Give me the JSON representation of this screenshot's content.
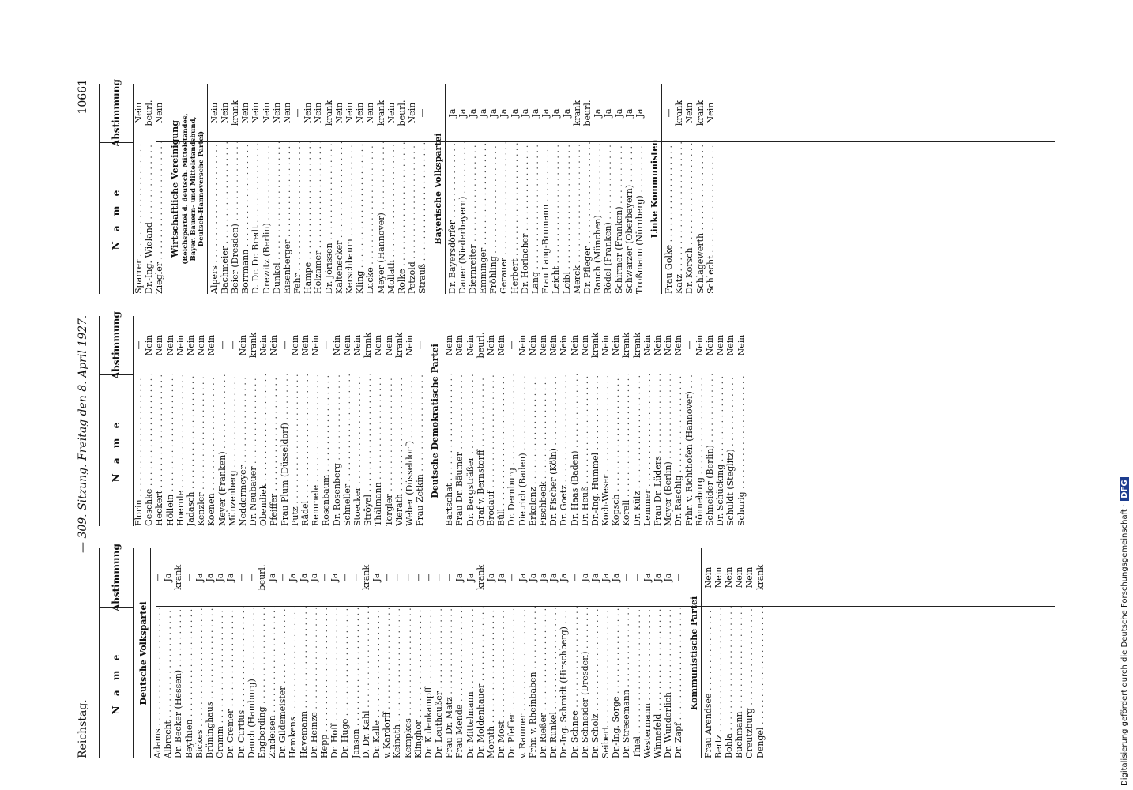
{
  "header": {
    "left": "Reichstag.",
    "center": "— 309. Sitzung. Freitag den 8. April 1927.",
    "page_number": "10661"
  },
  "column_header": {
    "name": "N a m e",
    "vote": "Abstimmung"
  },
  "sidebar": {
    "text": "Digitalisierung gefördert durch die Deutsche Forschungsgemeinschaft ·",
    "logo": "DFG"
  },
  "columns": [
    {
      "sections": [
        {
          "title": "Deutsche Volkspartei",
          "rows": [
            {
              "name": "Adams",
              "vote": "—"
            },
            {
              "name": "Albrecht",
              "vote": "Ja"
            },
            {
              "name": "Dr. Becker (Hessen)",
              "vote": "krank"
            },
            {
              "name": "Beythien",
              "vote": "—"
            },
            {
              "name": "Bickes",
              "vote": "Ja"
            },
            {
              "name": "Brüninghaus",
              "vote": "Ja"
            },
            {
              "name": "Cramm",
              "vote": "Ja"
            },
            {
              "name": "Dr. Cremer",
              "vote": "Ja"
            },
            {
              "name": "Dr. Curtius",
              "vote": "—"
            },
            {
              "name": "Dauch (Hamburg)",
              "vote": "—"
            },
            {
              "name": "Engberding",
              "vote": "beurl."
            },
            {
              "name": "Zindeisen",
              "vote": "Ja"
            },
            {
              "name": "Dr. Gildemeister",
              "vote": "—"
            },
            {
              "name": "Hamkens",
              "vote": "Ja"
            },
            {
              "name": "Havemann",
              "vote": "Ja"
            },
            {
              "name": "Dr. Heinze",
              "vote": "Ja"
            },
            {
              "name": "Hepp",
              "vote": "—"
            },
            {
              "name": "Dr. Hoff",
              "vote": "Ja"
            },
            {
              "name": "Dr. Hugo",
              "vote": "—"
            },
            {
              "name": "Janson",
              "vote": "—"
            },
            {
              "name": "D. Dr. Kahl",
              "vote": "krank"
            },
            {
              "name": "Dr. Kalle",
              "vote": "Ja"
            },
            {
              "name": "v. Kardorff",
              "vote": "—"
            },
            {
              "name": "Keinath",
              "vote": "—"
            },
            {
              "name": "Kempkes",
              "vote": "—"
            },
            {
              "name": "Klinghor",
              "vote": "—"
            },
            {
              "name": "Dr. Kulenkampff",
              "vote": "—"
            },
            {
              "name": "Dr. Leutheußer",
              "vote": "—"
            },
            {
              "name": "Frau Dr. Matz",
              "vote": "—"
            },
            {
              "name": "Frau Mende",
              "vote": "Ja"
            },
            {
              "name": "Dr. Mittelmann",
              "vote": "Ja"
            },
            {
              "name": "Dr. Moldenhauer",
              "vote": "krank"
            },
            {
              "name": "Morath",
              "vote": "Ja"
            },
            {
              "name": "Dr. Most",
              "vote": "Ja"
            },
            {
              "name": "Dr. Pfeffer",
              "vote": "—"
            },
            {
              "name": "v. Raumer",
              "vote": "Ja"
            },
            {
              "name": "Frhr. v. Rheinbaben",
              "vote": "Ja"
            },
            {
              "name": "Dr. Rießer",
              "vote": "Ja"
            },
            {
              "name": "Dr. Runkel",
              "vote": "Ja"
            },
            {
              "name": "Dr.-Ing. Schmidt (Hirschberg)",
              "vote": "Ja"
            },
            {
              "name": "Dr. Schnee",
              "vote": "—"
            },
            {
              "name": "Dr. Schneider (Dresden)",
              "vote": "Ja"
            },
            {
              "name": "Dr. Scholz",
              "vote": "Ja"
            },
            {
              "name": "Seibert",
              "vote": "Ja"
            },
            {
              "name": "Dr.-Ing. Sorge",
              "vote": "Ja"
            },
            {
              "name": "Dr. Stresemann",
              "vote": "—"
            },
            {
              "name": "Thiel",
              "vote": "—"
            },
            {
              "name": "Westermann",
              "vote": "Ja"
            },
            {
              "name": "Winnefeld",
              "vote": "Ja"
            },
            {
              "name": "Dr. Wunderlich",
              "vote": "Ja"
            },
            {
              "name": "Dr. Zapf",
              "vote": "—"
            }
          ]
        },
        {
          "title": "Kommunistische Partei",
          "rows": [
            {
              "name": "Frau Arendsee",
              "vote": "Nein"
            },
            {
              "name": "Bertz",
              "vote": "Nein"
            },
            {
              "name": "Bohla",
              "vote": "Nein"
            },
            {
              "name": "Buchmann",
              "vote": "Nein"
            },
            {
              "name": "Creutzburg",
              "vote": "Nein"
            },
            {
              "name": "Dengel",
              "vote": "krank"
            }
          ]
        }
      ]
    },
    {
      "sections": [
        {
          "title": "",
          "rows": [
            {
              "name": "Florin",
              "vote": "—"
            },
            {
              "name": "Geschke",
              "vote": "Nein"
            },
            {
              "name": "Heckert",
              "vote": "Nein"
            },
            {
              "name": "Höllein",
              "vote": "Nein"
            },
            {
              "name": "Hoernle",
              "vote": "Nein"
            },
            {
              "name": "Jadasch",
              "vote": "Nein"
            },
            {
              "name": "Kenzler",
              "vote": "Nein"
            },
            {
              "name": "Koenen",
              "vote": "Nein"
            },
            {
              "name": "Meyer (Franken)",
              "vote": "—"
            },
            {
              "name": "Münzenberg",
              "vote": "—"
            },
            {
              "name": "Neddermeyer",
              "vote": "Nein"
            },
            {
              "name": "Dr. Neubauer",
              "vote": "krank"
            },
            {
              "name": "Obendiek",
              "vote": "Nein"
            },
            {
              "name": "Pfeiffer",
              "vote": "Nein"
            },
            {
              "name": "Frau Plum (Düsseldorf)",
              "vote": "—"
            },
            {
              "name": "Putz",
              "vote": "Nein"
            },
            {
              "name": "Rädel",
              "vote": "Nein"
            },
            {
              "name": "Remmele",
              "vote": "Nein"
            },
            {
              "name": "Rosenbaum",
              "vote": "—"
            },
            {
              "name": "Dr. Rosenberg",
              "vote": "Nein"
            },
            {
              "name": "Schneller",
              "vote": "Nein"
            },
            {
              "name": "Stoecker",
              "vote": "Nein"
            },
            {
              "name": "Ströyel",
              "vote": "krank"
            },
            {
              "name": "Thälmann",
              "vote": "Nein"
            },
            {
              "name": "Torgler",
              "vote": "Nein"
            },
            {
              "name": "Vierath",
              "vote": "krank"
            },
            {
              "name": "Weber (Düsseldorf)",
              "vote": "Nein"
            },
            {
              "name": "Frau Zetkin",
              "vote": "—"
            }
          ]
        },
        {
          "title": "Deutsche Demokratische Partei",
          "rows": [
            {
              "name": "Bartschat",
              "vote": "Nein"
            },
            {
              "name": "Frau Dr. Bäumer",
              "vote": "Nein"
            },
            {
              "name": "Dr. Bergsträßer",
              "vote": "Nein"
            },
            {
              "name": "Graf v. Bernstorff",
              "vote": "beurl."
            },
            {
              "name": "Brodauf",
              "vote": "Nein"
            },
            {
              "name": "Büll",
              "vote": "Nein"
            },
            {
              "name": "Dr. Dernburg",
              "vote": "—"
            },
            {
              "name": "Dietrich (Baden)",
              "vote": "Nein"
            },
            {
              "name": "Erkelenz",
              "vote": "Nein"
            },
            {
              "name": "Fischbeck",
              "vote": "Nein"
            },
            {
              "name": "Dr. Fischer (Köln)",
              "vote": "Nein"
            },
            {
              "name": "Dr. Goetz",
              "vote": "Nein"
            },
            {
              "name": "Dr. Haas (Baden)",
              "vote": "Nein"
            },
            {
              "name": "Dr. Heuß",
              "vote": "Nein"
            },
            {
              "name": "Dr.-Ing. Hummel",
              "vote": "krank"
            },
            {
              "name": "Koch-Weser",
              "vote": "Nein"
            },
            {
              "name": "Kopsch",
              "vote": "Nein"
            },
            {
              "name": "Korell",
              "vote": "krank"
            },
            {
              "name": "Dr. Külz",
              "vote": "krank"
            },
            {
              "name": "Lemmer",
              "vote": "Nein"
            },
            {
              "name": "Frau Dr. Lüders",
              "vote": "Nein"
            },
            {
              "name": "Meyer (Berlin)",
              "vote": "Nein"
            },
            {
              "name": "Dr. Raschig",
              "vote": "Nein"
            },
            {
              "name": "Frhr. v. Richthofen (Hannover)",
              "vote": "—"
            },
            {
              "name": "Rönneburg",
              "vote": "Nein"
            },
            {
              "name": "Schneider (Berlin)",
              "vote": "Nein"
            },
            {
              "name": "Dr. Schücking",
              "vote": "Nein"
            },
            {
              "name": "Schuldt (Steglitz)",
              "vote": "Nein"
            },
            {
              "name": "Schurig",
              "vote": "Nein"
            }
          ]
        }
      ]
    },
    {
      "sections": [
        {
          "title": "",
          "rows": [
            {
              "name": "Sparrer",
              "vote": "Nein"
            },
            {
              "name": "Dr.-Ing. Wieland",
              "vote": "beurl."
            },
            {
              "name": "Ziegler",
              "vote": "Nein"
            }
          ]
        },
        {
          "title": "Wirtschaftliche Vereinigung",
          "subtitle": [
            "(Reichspartei d. deutsch. Mittelstandes,",
            "Bayer. Bauern- und Mittelstandsbund,",
            "Deutsch-Hannoversche Partei)"
          ],
          "rows": [
            {
              "name": "Alpers",
              "vote": "Nein"
            },
            {
              "name": "Bachmeier",
              "vote": "Nein"
            },
            {
              "name": "Beier (Dresden)",
              "vote": "krank"
            },
            {
              "name": "Borrmann",
              "vote": "Nein"
            },
            {
              "name": "D. Dr. Dr. Bredt",
              "vote": "Nein"
            },
            {
              "name": "Drewitz (Berlin)",
              "vote": "Nein"
            },
            {
              "name": "Dunkel",
              "vote": "Nein"
            },
            {
              "name": "Eisenberger",
              "vote": "Nein"
            },
            {
              "name": "Fehr",
              "vote": "—"
            },
            {
              "name": "Hampe",
              "vote": "Nein"
            },
            {
              "name": "Holzamer",
              "vote": "Nein"
            },
            {
              "name": "Dr. Jörissen",
              "vote": "krank"
            },
            {
              "name": "Kaltenecker",
              "vote": "Nein"
            },
            {
              "name": "Kerschbaum",
              "vote": "Nein"
            },
            {
              "name": "Kling",
              "vote": "Nein"
            },
            {
              "name": "Lucke",
              "vote": "Nein"
            },
            {
              "name": "Meyer (Hannover)",
              "vote": "krank"
            },
            {
              "name": "Mollath",
              "vote": "Nein"
            },
            {
              "name": "Rolke",
              "vote": "beurl."
            },
            {
              "name": "Petzold",
              "vote": "Nein"
            },
            {
              "name": "Strauß",
              "vote": "—"
            }
          ]
        },
        {
          "title": "Bayerische Volkspartei",
          "rows": [
            {
              "name": "Dr. Bayersdörfer",
              "vote": "Ja"
            },
            {
              "name": "Dauer (Niederbayern)",
              "vote": "Ja"
            },
            {
              "name": "Diernreiter",
              "vote": "Ja"
            },
            {
              "name": "Emminger",
              "vote": "Ja"
            },
            {
              "name": "Fröhling",
              "vote": "Ja"
            },
            {
              "name": "Gerauer",
              "vote": "Ja"
            },
            {
              "name": "Herbert",
              "vote": "Ja"
            },
            {
              "name": "Dr. Horlacher",
              "vote": "Ja"
            },
            {
              "name": "Lang",
              "vote": "Ja"
            },
            {
              "name": "Frau Lang-Brumann",
              "vote": "Ja"
            },
            {
              "name": "Leicht",
              "vote": "Ja"
            },
            {
              "name": "Loibl",
              "vote": "Ja"
            },
            {
              "name": "Merck",
              "vote": "krank"
            },
            {
              "name": "Dr. Pfleger",
              "vote": "beurl."
            },
            {
              "name": "Rauch (München)",
              "vote": "Ja"
            },
            {
              "name": "Rödel (Franken)",
              "vote": "Ja"
            },
            {
              "name": "Schirmer (Franken)",
              "vote": "Ja"
            },
            {
              "name": "Schwarzer (Oberbayern)",
              "vote": "Ja"
            },
            {
              "name": "Troßmann (Nürnberg)",
              "vote": "Ja"
            }
          ]
        },
        {
          "title": "Linke Kommunisten",
          "rows": [
            {
              "name": "Frau Golke",
              "vote": "—"
            },
            {
              "name": "Katz",
              "vote": "krank"
            },
            {
              "name": "Dr. Korsch",
              "vote": "Nein"
            },
            {
              "name": "Schlagewerth",
              "vote": "krank"
            },
            {
              "name": "Schlecht",
              "vote": "Nein"
            }
          ]
        }
      ]
    }
  ]
}
